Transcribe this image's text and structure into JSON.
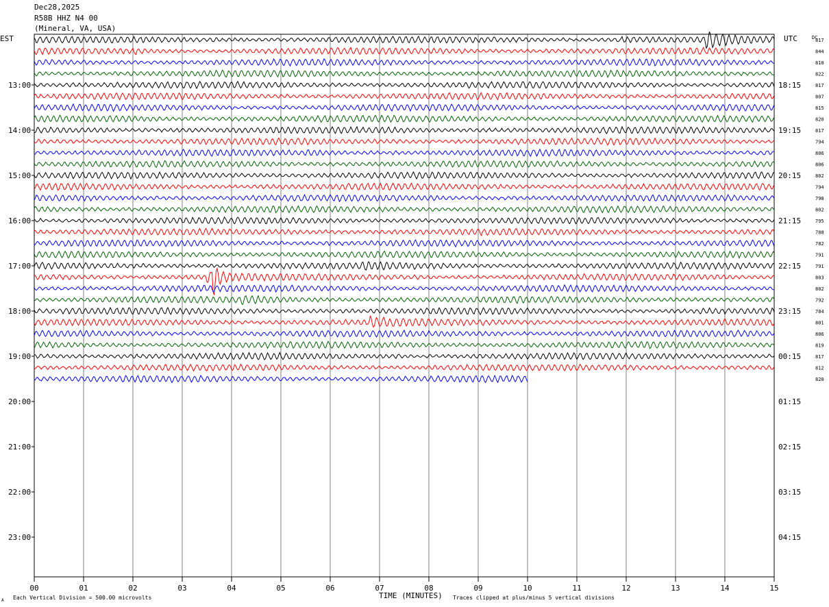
{
  "header": {
    "date": "Dec28,2025",
    "station": "R58B HHZ N4 00",
    "location": "(Mineral, VA, USA)"
  },
  "labels": {
    "left_tz": "EST",
    "right_tz": "UTC",
    "dc": "DC",
    "x_title": "TIME (MINUTES)",
    "scale_note": "Each Vertical Division =  500.00 microvolts",
    "clip_note": "Traces clipped at plus/minus 5 vertical divisions",
    "corner_mark": "A"
  },
  "colors": {
    "cycle": [
      "#000000",
      "#ff0000",
      "#0000ff",
      "#006400"
    ],
    "grid": "#808080"
  },
  "chart_data": {
    "type": "helicorder",
    "x_unit": "minutes",
    "xlim": [
      0,
      15
    ],
    "x_ticks": [
      "00",
      "01",
      "02",
      "03",
      "04",
      "05",
      "06",
      "07",
      "08",
      "09",
      "10",
      "11",
      "12",
      "13",
      "14",
      "15"
    ],
    "trace_minutes": 15,
    "est_hour_labels": [
      "13:00",
      "14:00",
      "15:00",
      "16:00",
      "17:00",
      "18:00",
      "19:00",
      "20:00",
      "21:00",
      "22:00",
      "23:00"
    ],
    "utc_hour_labels": [
      "18:15",
      "19:15",
      "20:15",
      "21:15",
      "22:15",
      "23:15",
      "00:15",
      "01:15",
      "02:15",
      "03:15",
      "04:15"
    ],
    "total_rows": 48,
    "last_trace_end_minute": 10,
    "dc_offsets": [
      817,
      844,
      810,
      822,
      817,
      807,
      815,
      820,
      817,
      794,
      806,
      806,
      802,
      794,
      798,
      802,
      795,
      788,
      782,
      791,
      791,
      803,
      802,
      792,
      784,
      801,
      806,
      819,
      817,
      812,
      820
    ],
    "events": [
      {
        "row": 0,
        "start": 3.6,
        "end": 4.0,
        "amp": 1.6
      },
      {
        "row": 0,
        "start": 11.9,
        "end": 12.8,
        "amp": 2.0
      },
      {
        "row": 0,
        "start": 13.6,
        "end": 14.6,
        "amp": 3.6
      },
      {
        "row": 1,
        "start": 2.0,
        "end": 2.8,
        "amp": 1.8
      },
      {
        "row": 4,
        "start": 14.7,
        "end": 15.0,
        "amp": 1.6
      },
      {
        "row": 7,
        "start": 1.4,
        "end": 2.6,
        "amp": 1.4
      },
      {
        "row": 10,
        "start": 5.5,
        "end": 6.2,
        "amp": 1.6
      },
      {
        "row": 20,
        "start": 6.6,
        "end": 9.0,
        "amp": 1.4
      },
      {
        "row": 21,
        "start": 3.5,
        "end": 4.8,
        "amp": 3.0
      },
      {
        "row": 21,
        "start": 3.6,
        "end": 3.85,
        "amp": 5.0
      },
      {
        "row": 23,
        "start": 4.2,
        "end": 5.8,
        "amp": 1.6
      },
      {
        "row": 24,
        "start": 13.5,
        "end": 14.0,
        "amp": 1.6
      },
      {
        "row": 25,
        "start": 6.8,
        "end": 8.0,
        "amp": 2.2
      },
      {
        "row": 26,
        "start": 3.2,
        "end": 3.8,
        "amp": 1.4
      }
    ]
  }
}
